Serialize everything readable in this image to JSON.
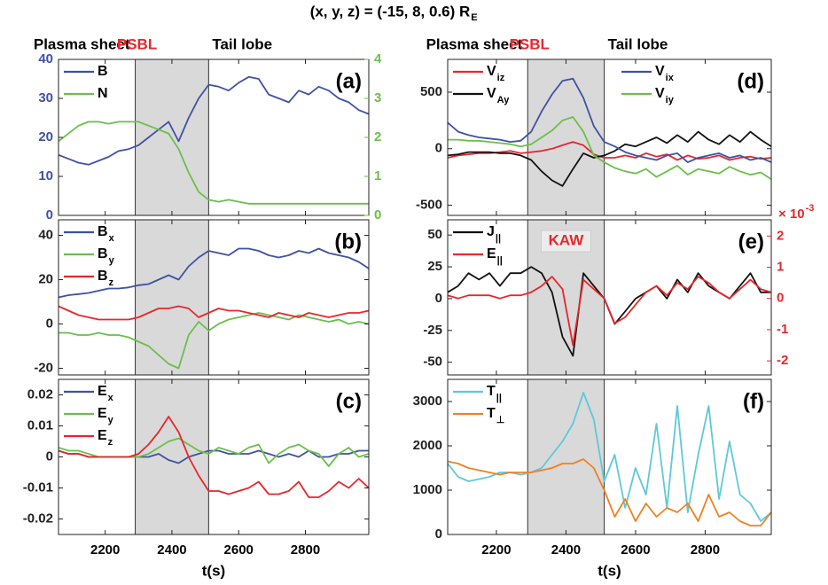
{
  "title": "(x, y, z) = (-15, 8, 0.6) R",
  "title_subscript": "E",
  "chart_data": [
    {
      "type": "line",
      "panel_label": "(a)",
      "shaded_region": [
        2290,
        2510
      ],
      "region_labels": [
        {
          "text": "Plasma sheet",
          "color": "#000000"
        },
        {
          "text": "PSBL",
          "color": "#e8262b"
        },
        {
          "text": "Tail lobe",
          "color": "#000000"
        }
      ],
      "x": [
        2060,
        2090,
        2120,
        2150,
        2180,
        2210,
        2240,
        2270,
        2300,
        2330,
        2360,
        2390,
        2420,
        2450,
        2480,
        2510,
        2540,
        2570,
        2600,
        2630,
        2660,
        2690,
        2720,
        2750,
        2780,
        2810,
        2840,
        2870,
        2900,
        2930,
        2960,
        2990
      ],
      "xlim": [
        2060,
        2990
      ],
      "xticks": [
        2200,
        2400,
        2600,
        2800
      ],
      "ylim": [
        0,
        40
      ],
      "yticks": [
        0,
        10,
        20,
        30,
        40
      ],
      "ycolor": "#3f51a3",
      "y2lim": [
        0,
        4
      ],
      "y2ticks": [
        0,
        1,
        2,
        3,
        4
      ],
      "y2color": "#6abf4b",
      "legend": "upper left",
      "series": [
        {
          "name": "B",
          "color": "#3f51a3",
          "values": [
            15.5,
            14.5,
            13.5,
            13,
            14,
            15,
            16.5,
            17,
            18,
            20,
            22,
            24,
            19,
            25,
            30,
            33.5,
            33,
            32,
            34,
            35.5,
            35,
            31,
            30,
            29,
            32,
            31,
            33,
            32,
            30,
            29,
            27,
            26
          ]
        },
        {
          "name": "N",
          "color": "#6abf4b",
          "axis": "y2",
          "values": [
            1.9,
            2.1,
            2.3,
            2.4,
            2.4,
            2.35,
            2.4,
            2.4,
            2.4,
            2.3,
            2.2,
            2.1,
            1.7,
            1.1,
            0.6,
            0.4,
            0.35,
            0.4,
            0.35,
            0.3,
            0.3,
            0.3,
            0.3,
            0.3,
            0.3,
            0.3,
            0.3,
            0.3,
            0.3,
            0.3,
            0.3,
            0.3
          ]
        }
      ]
    },
    {
      "type": "line",
      "panel_label": "(b)",
      "shaded_region": [
        2290,
        2510
      ],
      "x": [
        2060,
        2090,
        2120,
        2150,
        2180,
        2210,
        2240,
        2270,
        2300,
        2330,
        2360,
        2390,
        2420,
        2450,
        2480,
        2510,
        2540,
        2570,
        2600,
        2630,
        2660,
        2690,
        2720,
        2750,
        2780,
        2810,
        2840,
        2870,
        2900,
        2930,
        2960,
        2990
      ],
      "xlim": [
        2060,
        2990
      ],
      "xticks": [
        2200,
        2400,
        2600,
        2800
      ],
      "ylim": [
        -23,
        47
      ],
      "yticks": [
        -20,
        0,
        20,
        40
      ],
      "legend": "upper left",
      "series": [
        {
          "name": "B",
          "subscript": "x",
          "color": "#3f51a3",
          "values": [
            12,
            13,
            13.5,
            14,
            15,
            16,
            16,
            16.5,
            17.5,
            18,
            20,
            22,
            20,
            26,
            30,
            33,
            32,
            31,
            34,
            34,
            33,
            31,
            30,
            31,
            33,
            32,
            34,
            32,
            31,
            30,
            28,
            25
          ]
        },
        {
          "name": "B",
          "subscript": "y",
          "color": "#6abf4b",
          "values": [
            -4,
            -4,
            -5,
            -5,
            -4,
            -5,
            -5,
            -6,
            -8,
            -10,
            -14,
            -18,
            -20,
            -5,
            1,
            -3,
            0,
            2,
            3,
            4,
            5,
            4,
            3,
            2,
            4,
            3,
            2,
            1,
            2,
            0,
            1,
            0
          ]
        },
        {
          "name": "B",
          "subscript": "z",
          "color": "#e8262b",
          "values": [
            8,
            6,
            4,
            3,
            2,
            2,
            2,
            2,
            3,
            5,
            7,
            7,
            8,
            7,
            3,
            5,
            7,
            6,
            6,
            5,
            4,
            3,
            5,
            4,
            3,
            5,
            4,
            3,
            4,
            5,
            5,
            6
          ]
        }
      ]
    },
    {
      "type": "line",
      "panel_label": "(c)",
      "shaded_region": [
        2290,
        2510
      ],
      "xlabel": "t(s)",
      "xtick_labels": true,
      "x": [
        2060,
        2090,
        2120,
        2150,
        2180,
        2210,
        2240,
        2270,
        2300,
        2330,
        2360,
        2390,
        2420,
        2450,
        2480,
        2510,
        2540,
        2570,
        2600,
        2630,
        2660,
        2690,
        2720,
        2750,
        2780,
        2810,
        2840,
        2870,
        2900,
        2930,
        2960,
        2990
      ],
      "xlim": [
        2060,
        2990
      ],
      "xticks": [
        2200,
        2400,
        2600,
        2800
      ],
      "ylim": [
        -0.025,
        0.025
      ],
      "yticks": [
        -0.02,
        -0.01,
        0,
        0.01,
        0.02
      ],
      "legend": "upper left",
      "series": [
        {
          "name": "E",
          "subscript": "x",
          "color": "#3f51a3",
          "values": [
            0.002,
            0.001,
            0.001,
            0,
            0,
            0,
            0,
            0,
            0,
            0,
            0.001,
            -0.001,
            -0.002,
            0,
            0.001,
            0.002,
            0.002,
            0.001,
            0.001,
            0.001,
            0.002,
            0.001,
            0,
            0.001,
            0,
            0.002,
            0,
            0,
            0.001,
            0.001,
            0.002,
            0.002
          ]
        },
        {
          "name": "E",
          "subscript": "y",
          "color": "#6abf4b",
          "values": [
            0.003,
            0.002,
            0.002,
            0.001,
            0,
            0,
            0,
            0,
            0,
            0.001,
            0.003,
            0.005,
            0.006,
            0.004,
            0.002,
            0.001,
            0.003,
            0.002,
            0.001,
            0.003,
            0.004,
            -0.002,
            0.001,
            0.003,
            0.004,
            0.002,
            0.001,
            -0.003,
            0.001,
            0.003,
            0,
            0.001
          ]
        },
        {
          "name": "E",
          "subscript": "z",
          "color": "#e8262b",
          "values": [
            0.002,
            0.001,
            0.001,
            0,
            0,
            0,
            0,
            0,
            0.001,
            0.004,
            0.008,
            0.013,
            0.008,
            0,
            -0.006,
            -0.011,
            -0.011,
            -0.012,
            -0.011,
            -0.01,
            -0.008,
            -0.012,
            -0.012,
            -0.011,
            -0.008,
            -0.013,
            -0.013,
            -0.011,
            -0.008,
            -0.01,
            -0.007,
            -0.01
          ]
        }
      ]
    },
    {
      "type": "line",
      "panel_label": "(d)",
      "shaded_region": [
        2290,
        2510
      ],
      "region_labels": [
        {
          "text": "Plasma sheet",
          "color": "#000000"
        },
        {
          "text": "PSBL",
          "color": "#e8262b"
        },
        {
          "text": "Tail lobe",
          "color": "#000000"
        }
      ],
      "x": [
        2060,
        2090,
        2120,
        2150,
        2180,
        2210,
        2240,
        2270,
        2300,
        2330,
        2360,
        2390,
        2420,
        2450,
        2480,
        2510,
        2540,
        2570,
        2600,
        2630,
        2660,
        2690,
        2720,
        2750,
        2780,
        2810,
        2840,
        2870,
        2900,
        2930,
        2960,
        2990
      ],
      "xlim": [
        2060,
        2990
      ],
      "xticks": [
        2200,
        2400,
        2600,
        2800
      ],
      "ylim": [
        -590,
        790
      ],
      "yticks": [
        -500,
        0,
        500
      ],
      "legend": "split",
      "series": [
        {
          "name": "V",
          "subscript": "iz",
          "color": "#e8262b",
          "values": [
            -80,
            -60,
            -50,
            -40,
            -40,
            -30,
            -20,
            -40,
            -30,
            -20,
            0,
            30,
            60,
            30,
            -50,
            -80,
            -80,
            -60,
            -80,
            -40,
            -70,
            -50,
            -100,
            -60,
            -90,
            -80,
            -60,
            -100,
            -80,
            -70,
            -90,
            -80
          ]
        },
        {
          "name": "V",
          "subscript": "Ay",
          "color": "#111111",
          "values": [
            -60,
            -50,
            -30,
            -30,
            -30,
            -40,
            -40,
            -60,
            -100,
            -200,
            -280,
            -330,
            -180,
            -40,
            -80,
            -60,
            -20,
            40,
            20,
            60,
            100,
            50,
            120,
            60,
            150,
            80,
            40,
            120,
            60,
            150,
            80,
            20
          ]
        },
        {
          "name": "V",
          "subscript": "ix",
          "color": "#3f51a3",
          "values": [
            230,
            150,
            120,
            100,
            90,
            80,
            60,
            70,
            150,
            330,
            480,
            600,
            620,
            450,
            200,
            60,
            20,
            -30,
            -60,
            -80,
            -100,
            -60,
            -40,
            -120,
            -80,
            -60,
            -40,
            -80,
            -60,
            -100,
            -80,
            -120
          ]
        },
        {
          "name": "V",
          "subscript": "iy",
          "color": "#6abf4b",
          "values": [
            80,
            80,
            70,
            70,
            60,
            50,
            40,
            20,
            40,
            100,
            160,
            250,
            280,
            150,
            -60,
            -120,
            -170,
            -200,
            -220,
            -180,
            -250,
            -200,
            -150,
            -230,
            -180,
            -200,
            -220,
            -160,
            -200,
            -230,
            -210,
            -270
          ]
        }
      ]
    },
    {
      "type": "line",
      "panel_label": "(e)",
      "shaded_region": [
        2290,
        2510
      ],
      "annotation": "KAW",
      "x": [
        2060,
        2090,
        2120,
        2150,
        2180,
        2210,
        2240,
        2270,
        2300,
        2330,
        2360,
        2390,
        2420,
        2450,
        2480,
        2510,
        2540,
        2570,
        2600,
        2630,
        2660,
        2690,
        2720,
        2750,
        2780,
        2810,
        2840,
        2870,
        2900,
        2930,
        2960,
        2990
      ],
      "xlim": [
        2060,
        2990
      ],
      "xticks": [
        2200,
        2400,
        2600,
        2800
      ],
      "ylim": [
        -60,
        62
      ],
      "yticks": [
        -50,
        -25,
        0,
        25,
        50
      ],
      "y2lim": [
        -2.45,
        2.52
      ],
      "y2ticks": [
        -2,
        -1,
        0,
        1,
        2
      ],
      "y2color": "#e8262b",
      "y2_multiplier": "× 10",
      "y2_multiplier_exp": "-3",
      "legend": "upper left",
      "series": [
        {
          "name": "J",
          "subscript": "||",
          "color": "#111111",
          "values": [
            5,
            10,
            20,
            15,
            20,
            10,
            20,
            20,
            25,
            20,
            5,
            -30,
            -45,
            20,
            10,
            0,
            -20,
            -10,
            0,
            5,
            10,
            0,
            15,
            5,
            20,
            10,
            5,
            0,
            10,
            20,
            5,
            5
          ]
        },
        {
          "name": "E",
          "subscript": "||",
          "color": "#e8262b",
          "axis": "y2",
          "values": [
            0.1,
            0,
            0.1,
            0.1,
            0.1,
            0,
            0.1,
            0.1,
            0.2,
            0.4,
            0.7,
            0.3,
            -1.5,
            0.6,
            0.3,
            0,
            -0.8,
            -0.6,
            -0.2,
            0.2,
            0.4,
            0.1,
            0.5,
            0.3,
            0.7,
            0.5,
            0.2,
            0,
            0.3,
            0.6,
            0.3,
            0.2
          ]
        }
      ]
    },
    {
      "type": "line",
      "panel_label": "(f)",
      "shaded_region": [
        2290,
        2510
      ],
      "xlabel": "t(s)",
      "xtick_labels": true,
      "x": [
        2060,
        2090,
        2120,
        2150,
        2180,
        2210,
        2240,
        2270,
        2300,
        2330,
        2360,
        2390,
        2420,
        2450,
        2480,
        2510,
        2540,
        2570,
        2600,
        2630,
        2660,
        2690,
        2720,
        2750,
        2780,
        2810,
        2840,
        2870,
        2900,
        2930,
        2960,
        2990
      ],
      "xlim": [
        2060,
        2990
      ],
      "xticks": [
        2200,
        2400,
        2600,
        2800
      ],
      "ylim": [
        0,
        3500
      ],
      "yticks": [
        0,
        1000,
        2000,
        3000
      ],
      "legend": "upper left",
      "series": [
        {
          "name": "T",
          "subscript": "||",
          "color": "#5ec8d8",
          "values": [
            1600,
            1300,
            1200,
            1250,
            1300,
            1400,
            1400,
            1350,
            1400,
            1500,
            1800,
            2100,
            2500,
            3200,
            2600,
            1200,
            1800,
            600,
            1500,
            900,
            2500,
            600,
            2900,
            500,
            1800,
            2900,
            800,
            2100,
            900,
            700,
            300,
            500
          ]
        },
        {
          "name": "T",
          "subscript": "⊥",
          "color": "#f08022",
          "values": [
            1650,
            1600,
            1500,
            1450,
            1400,
            1350,
            1400,
            1400,
            1400,
            1450,
            1500,
            1600,
            1600,
            1700,
            1500,
            1000,
            400,
            800,
            300,
            700,
            400,
            600,
            500,
            700,
            300,
            900,
            400,
            500,
            300,
            200,
            200,
            500
          ]
        }
      ]
    }
  ]
}
